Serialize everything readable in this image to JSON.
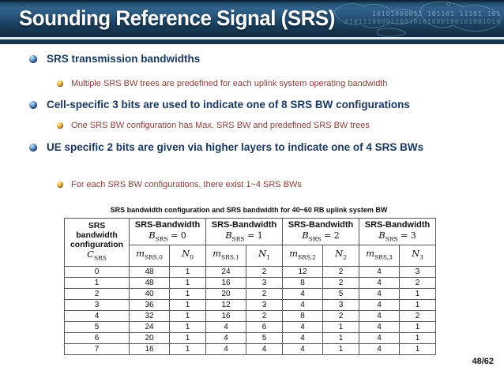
{
  "slide": {
    "title": "Sounding Reference Signal (SRS)",
    "page": "48/62"
  },
  "header_decoration": {
    "binary_line1": "10101000011  101101  11101  101",
    "binary_line2": "0101110000110010101000100101001010"
  },
  "bullets": [
    {
      "level": 1,
      "text": "SRS transmission bandwidths"
    },
    {
      "level": 2,
      "text": "Multiple SRS BW trees are predefined for each uplink system operating bandwidth"
    },
    {
      "level": 1,
      "text": "Cell-specific 3 bits are used to indicate one of 8 SRS BW configurations"
    },
    {
      "level": 2,
      "text": "One SRS BW configuration has Max. SRS BW and predefined SRS BW trees"
    },
    {
      "level": 1,
      "text": "UE specific 2 bits are given via higher layers to indicate one of 4 SRS BWs"
    },
    {
      "level": 2,
      "text": "For each SRS BW configurations, there exist 1~4 SRS BWs"
    }
  ],
  "table": {
    "caption": "SRS bandwidth configuration and SRS bandwidth for 40~60 RB uplink system BW",
    "config_header": {
      "line1": "SRS",
      "line2": "bandwidth",
      "line3": "configuration",
      "symbol": "C",
      "symbol_sub": "SRS"
    },
    "groups": [
      {
        "title": "SRS-Bandwidth",
        "b_symbol": "B",
        "b_sub": "SRS",
        "b_eq": " = 0",
        "m_symbol": "m",
        "m_sub": "SRS,0",
        "n_symbol": "N",
        "n_sub": "0"
      },
      {
        "title": "SRS-Bandwidth",
        "b_symbol": "B",
        "b_sub": "SRS",
        "b_eq": " = 1",
        "m_symbol": "m",
        "m_sub": "SRS,1",
        "n_symbol": "N",
        "n_sub": "1"
      },
      {
        "title": "SRS-Bandwidth",
        "b_symbol": "B",
        "b_sub": "SRS",
        "b_eq": " = 2",
        "m_symbol": "m",
        "m_sub": "SRS,2",
        "n_symbol": "N",
        "n_sub": "2"
      },
      {
        "title": "SRS-Bandwidth",
        "b_symbol": "B",
        "b_sub": "SRS",
        "b_eq": " = 3",
        "m_symbol": "m",
        "m_sub": "SRS,3",
        "n_symbol": "N",
        "n_sub": "3"
      }
    ],
    "rows": [
      [
        "0",
        "48",
        "1",
        "24",
        "2",
        "12",
        "2",
        "4",
        "3"
      ],
      [
        "1",
        "48",
        "1",
        "16",
        "3",
        "8",
        "2",
        "4",
        "2"
      ],
      [
        "2",
        "40",
        "1",
        "20",
        "2",
        "4",
        "5",
        "4",
        "1"
      ],
      [
        "3",
        "36",
        "1",
        "12",
        "3",
        "4",
        "3",
        "4",
        "1"
      ],
      [
        "4",
        "32",
        "1",
        "16",
        "2",
        "8",
        "2",
        "4",
        "2"
      ],
      [
        "5",
        "24",
        "1",
        "4",
        "6",
        "4",
        "1",
        "4",
        "1"
      ],
      [
        "6",
        "20",
        "1",
        "4",
        "5",
        "4",
        "1",
        "4",
        "1"
      ],
      [
        "7",
        "16",
        "1",
        "4",
        "4",
        "4",
        "1",
        "4",
        "1"
      ]
    ]
  },
  "colors": {
    "header_navy": "#16364f",
    "header_mid_blue": "#32628a",
    "bullet_level1_text": "#17375d",
    "bullet_level2_text": "#8a3d3b",
    "table_border": "#595959"
  }
}
